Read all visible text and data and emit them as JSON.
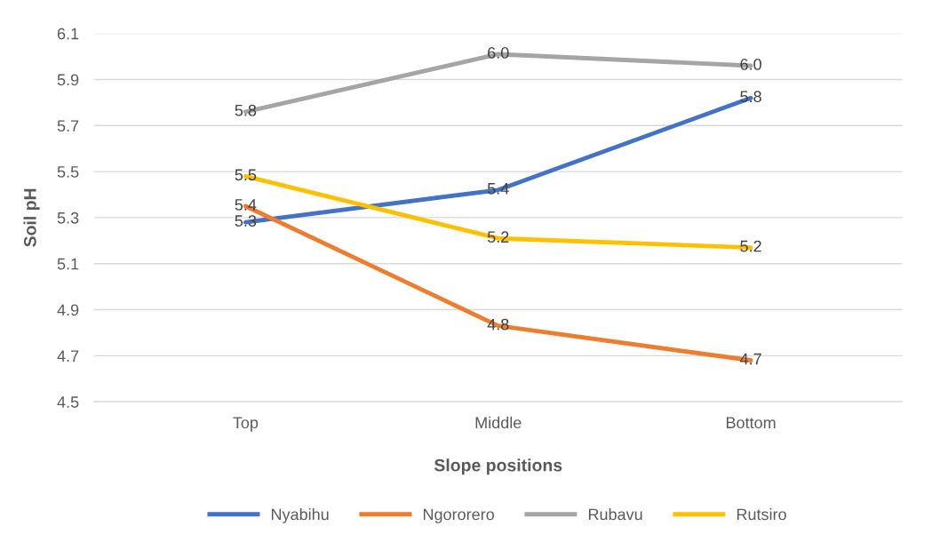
{
  "chart_data": {
    "type": "line",
    "xlabel": "Slope positions",
    "ylabel": "Soil pH",
    "categories": [
      "Top",
      "Middle",
      "Bottom"
    ],
    "series": [
      {
        "name": "Nyabihu",
        "color": "#4472c4",
        "values": [
          5.28,
          5.42,
          5.82
        ],
        "value_labels": [
          "5.3",
          "5.4",
          "5.8"
        ]
      },
      {
        "name": "Ngororero",
        "color": "#ed7d31",
        "values": [
          5.35,
          4.83,
          4.68
        ],
        "value_labels": [
          "5.4",
          "4.8",
          "4.7"
        ]
      },
      {
        "name": "Rubavu",
        "color": "#a5a5a5",
        "values": [
          5.76,
          6.01,
          5.96
        ],
        "value_labels": [
          "5.8",
          "6.0",
          "6.0"
        ]
      },
      {
        "name": "Rutsiro",
        "color": "#ffc000",
        "values": [
          5.48,
          5.21,
          5.17
        ],
        "value_labels": [
          "5.5",
          "5.2",
          "5.2"
        ]
      }
    ],
    "ylim": [
      4.5,
      6.1
    ],
    "yticks": [
      4.5,
      4.7,
      4.9,
      5.1,
      5.3,
      5.5,
      5.7,
      5.9,
      6.1
    ],
    "grid": "y",
    "legend": "bottom",
    "marker": "none",
    "line_style": "solid"
  }
}
